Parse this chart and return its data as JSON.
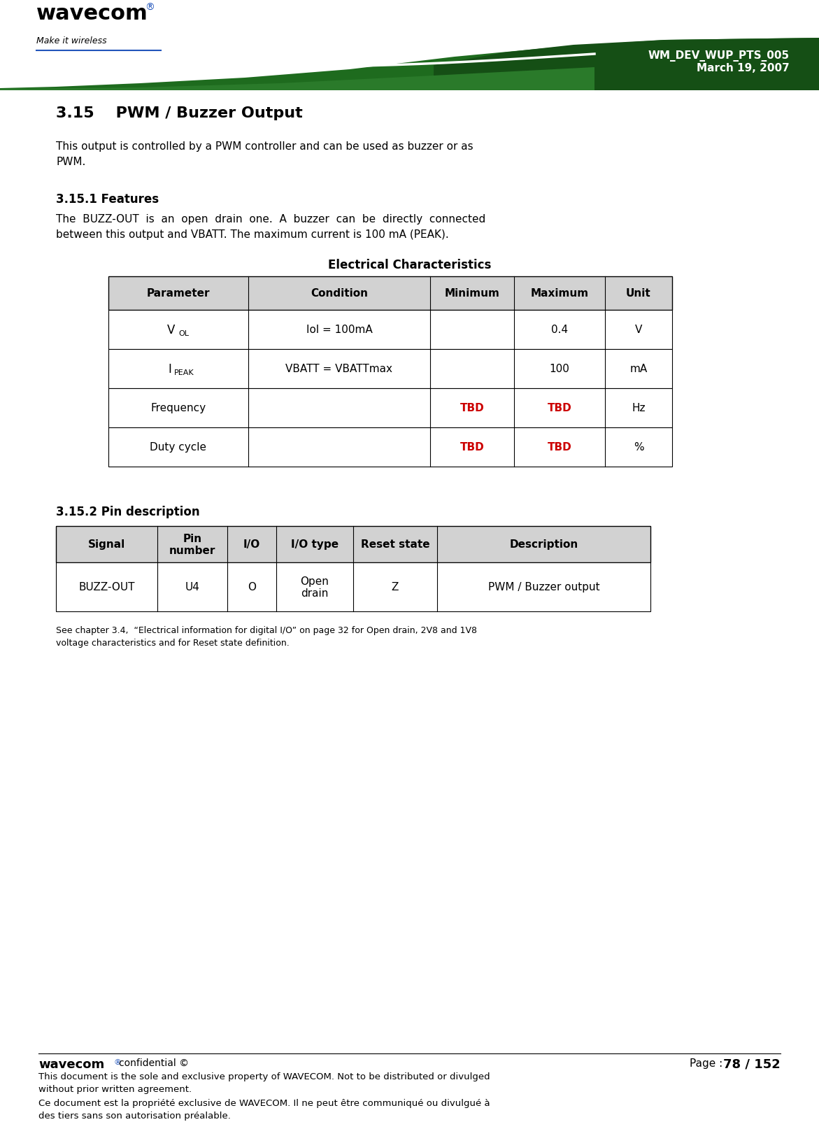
{
  "header_title_line1": "WM_DEV_WUP_PTS_005",
  "header_title_line2": "March 19, 2007",
  "section_title": "3.15    PWM / Buzzer Output",
  "section_intro_line1": "This output is controlled by a PWM controller and can be used as buzzer or as",
  "section_intro_line2": "PWM.",
  "subsection1_title": "3.15.1 Features",
  "subsection1_body_line1": "The  BUZZ-OUT  is  an  open  drain  one.  A  buzzer  can  be  directly  connected",
  "subsection1_body_line2": "between this output and VBATT. The maximum current is 100 mA (PEAK).",
  "elec_char_title": "Electrical Characteristics",
  "elec_table_headers": [
    "Parameter",
    "Condition",
    "Minimum",
    "Maximum",
    "Unit"
  ],
  "elec_table_rows": [
    [
      "VOL",
      "Iol = 100mA",
      "",
      "0.4",
      "V"
    ],
    [
      "IPEAK",
      "VBATT = VBATTmax",
      "",
      "100",
      "mA"
    ],
    [
      "Frequency",
      "",
      "TBD",
      "TBD",
      "Hz"
    ],
    [
      "Duty cycle",
      "",
      "TBD",
      "TBD",
      "%"
    ]
  ],
  "subsection2_title": "3.15.2 Pin description",
  "pin_table_headers": [
    "Signal",
    "Pin\nnumber",
    "I/O",
    "I/O type",
    "Reset state",
    "Description"
  ],
  "pin_table_rows": [
    [
      "BUZZ-OUT",
      "U4",
      "O",
      "Open\ndrain",
      "Z",
      "PWM / Buzzer output"
    ]
  ],
  "footnote_line1": "See chapter 3.4,  “Electrical information for digital I/O” on page 32 for Open drain, 2V8 and 1V8",
  "footnote_line2": "voltage characteristics and for Reset state definition.",
  "footer_page_label": "Page : ",
  "footer_page_num": "78 / 152",
  "footer_text1_line1": "This document is the sole and exclusive property of WAVECOM. Not to be distributed or divulged",
  "footer_text1_line2": "without prior written agreement.",
  "footer_text2_line1": "Ce document est la propriété exclusive de WAVECOM. Il ne peut être communiqué ou divulgué à",
  "footer_text2_line2": "des tiers sans son autorisation préalable.",
  "tbd_color": "#cc0000",
  "green_dark": "#1a5e1a",
  "green_mid": "#2e7d2e",
  "blue_accent": "#2255bb",
  "table_header_bg": "#d2d2d2",
  "border_color": "#000000"
}
